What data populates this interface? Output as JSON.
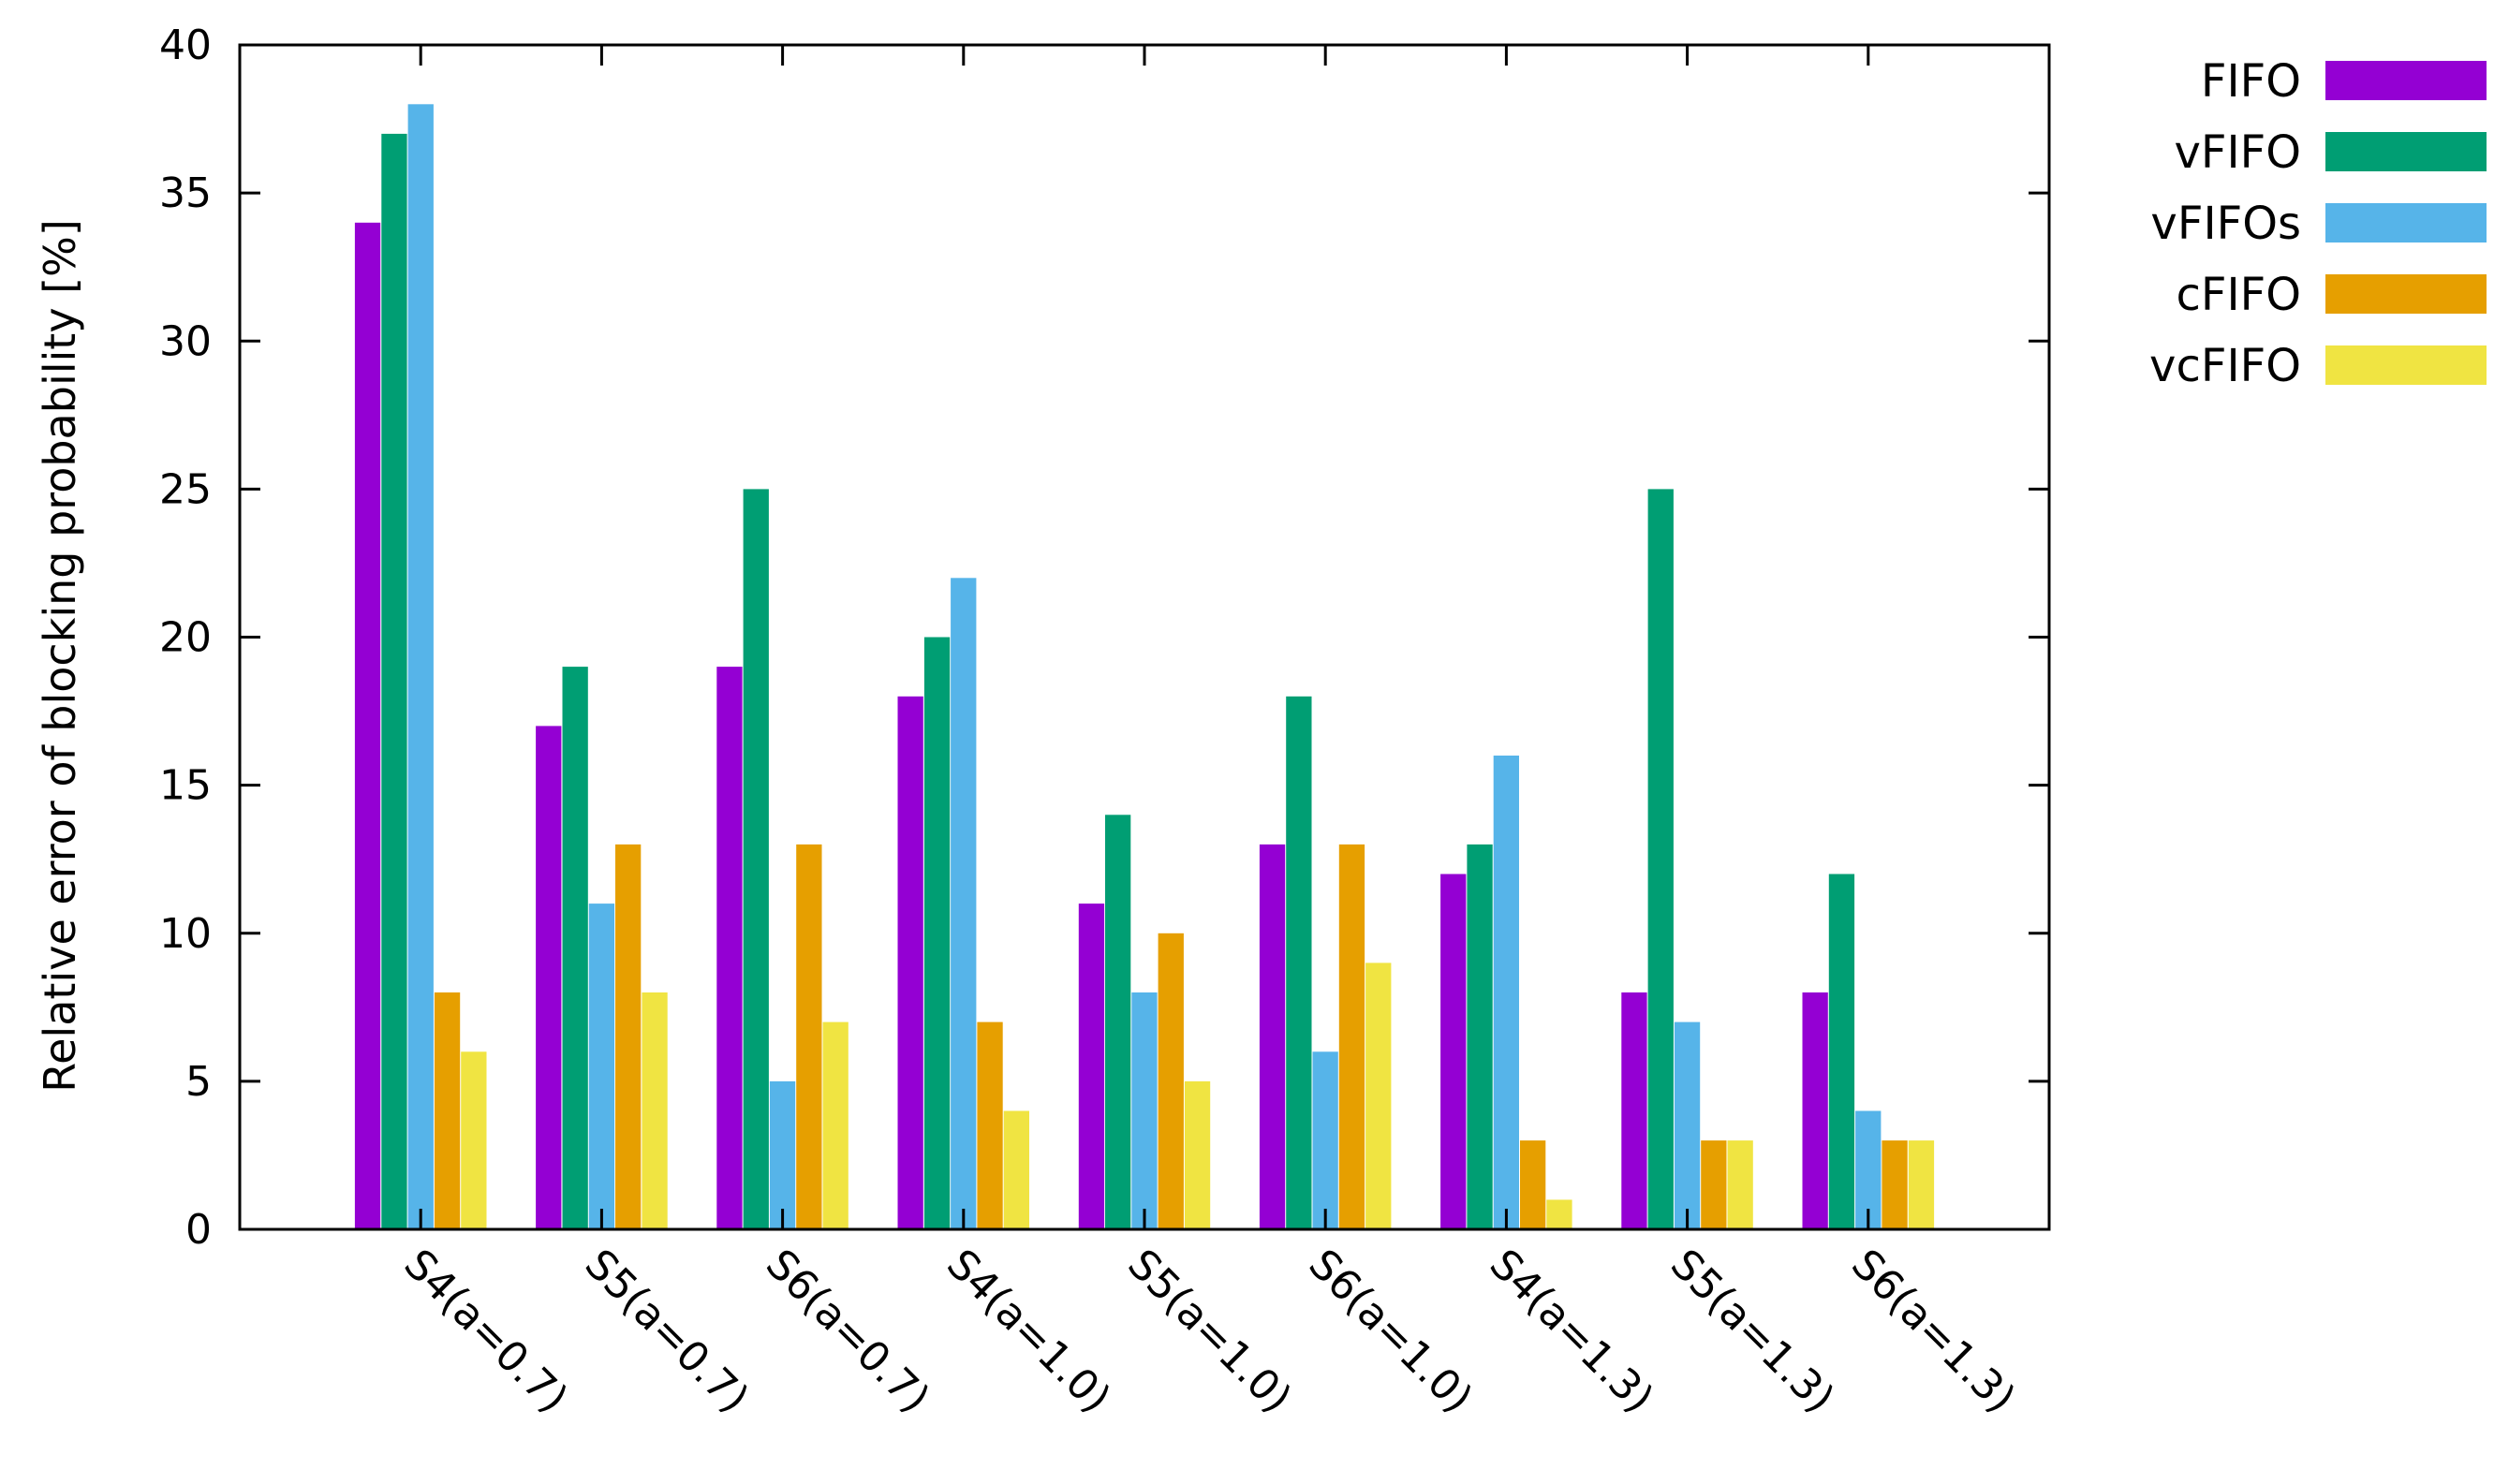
{
  "chart_data": {
    "type": "bar",
    "title": "",
    "xlabel": "",
    "ylabel": "Relative error of blocking probability [%]",
    "ylim": [
      0,
      40
    ],
    "yticks": [
      0,
      5,
      10,
      15,
      20,
      25,
      30,
      35,
      40
    ],
    "grid": false,
    "legend_position": "outside-top-right",
    "categories": [
      "S4(a=0.7)",
      "S5(a=0.7)",
      "S6(a=0.7)",
      "S4(a=1.0)",
      "S5(a=1.0)",
      "S6(a=1.0)",
      "S4(a=1.3)",
      "S5(a=1.3)",
      "S6(a=1.3)"
    ],
    "series": [
      {
        "name": "FIFO",
        "color": "#9400d3",
        "values": [
          34,
          17,
          19,
          18,
          11,
          13,
          12,
          8,
          8
        ]
      },
      {
        "name": "vFIFO",
        "color": "#009e73",
        "values": [
          37,
          19,
          25,
          20,
          14,
          18,
          13,
          25,
          12
        ]
      },
      {
        "name": "vFIFOs",
        "color": "#56b4e9",
        "values": [
          38,
          11,
          5,
          22,
          8,
          6,
          16,
          7,
          4
        ]
      },
      {
        "name": "cFIFO",
        "color": "#e69f00",
        "values": [
          8,
          13,
          13,
          7,
          10,
          13,
          3,
          3,
          3
        ]
      },
      {
        "name": "vcFIFO",
        "color": "#f0e442",
        "values": [
          6,
          8,
          7,
          4,
          5,
          9,
          1,
          3,
          3
        ]
      }
    ]
  }
}
